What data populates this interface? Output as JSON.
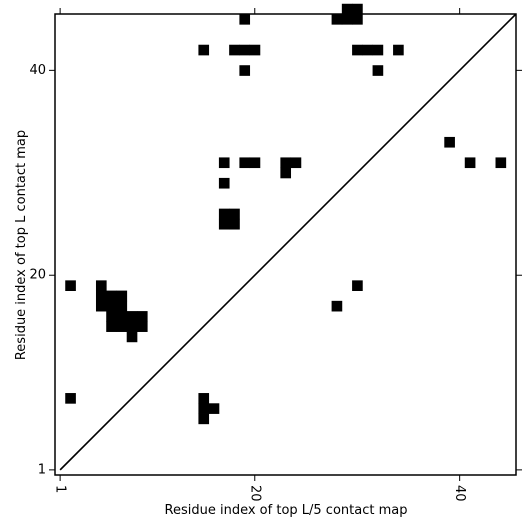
{
  "chart_data": {
    "type": "heatmap",
    "xlabel": "Residue index of top L/5 contact map",
    "ylabel": "Residue index of top L contact map",
    "xlim": [
      0.5,
      45.5
    ],
    "ylim": [
      0.5,
      45.5
    ],
    "xticks": [
      {
        "value": 1,
        "label": "1"
      },
      {
        "value": 20,
        "label": "20"
      },
      {
        "value": 40,
        "label": "40"
      }
    ],
    "yticks": [
      {
        "value": 1,
        "label": "1"
      },
      {
        "value": 20,
        "label": "20"
      },
      {
        "value": 40,
        "label": "40"
      }
    ],
    "diagonal": true,
    "cell_color": "#000000",
    "contacts": [
      [
        19,
        45
      ],
      [
        29,
        46
      ],
      [
        30,
        46
      ],
      [
        28,
        45
      ],
      [
        29,
        45
      ],
      [
        30,
        45
      ],
      [
        15,
        42
      ],
      [
        18,
        42
      ],
      [
        19,
        42
      ],
      [
        20,
        42
      ],
      [
        30,
        42
      ],
      [
        31,
        42
      ],
      [
        32,
        42
      ],
      [
        34,
        42
      ],
      [
        19,
        40
      ],
      [
        32,
        40
      ],
      [
        39,
        33
      ],
      [
        17,
        31
      ],
      [
        19,
        31
      ],
      [
        20,
        31
      ],
      [
        23,
        31
      ],
      [
        24,
        31
      ],
      [
        41,
        31
      ],
      [
        44,
        31
      ],
      [
        23,
        30
      ],
      [
        17,
        29
      ],
      [
        17,
        26
      ],
      [
        18,
        26
      ],
      [
        17,
        25
      ],
      [
        18,
        25
      ],
      [
        2,
        19
      ],
      [
        5,
        19
      ],
      [
        30,
        19
      ],
      [
        5,
        18
      ],
      [
        6,
        18
      ],
      [
        7,
        18
      ],
      [
        5,
        17
      ],
      [
        6,
        17
      ],
      [
        7,
        17
      ],
      [
        28,
        17
      ],
      [
        6,
        16
      ],
      [
        7,
        16
      ],
      [
        8,
        16
      ],
      [
        9,
        16
      ],
      [
        6,
        15
      ],
      [
        7,
        15
      ],
      [
        8,
        15
      ],
      [
        9,
        15
      ],
      [
        8,
        14
      ],
      [
        2,
        8
      ],
      [
        15,
        8
      ],
      [
        15,
        7
      ],
      [
        16,
        7
      ],
      [
        15,
        6
      ]
    ]
  }
}
